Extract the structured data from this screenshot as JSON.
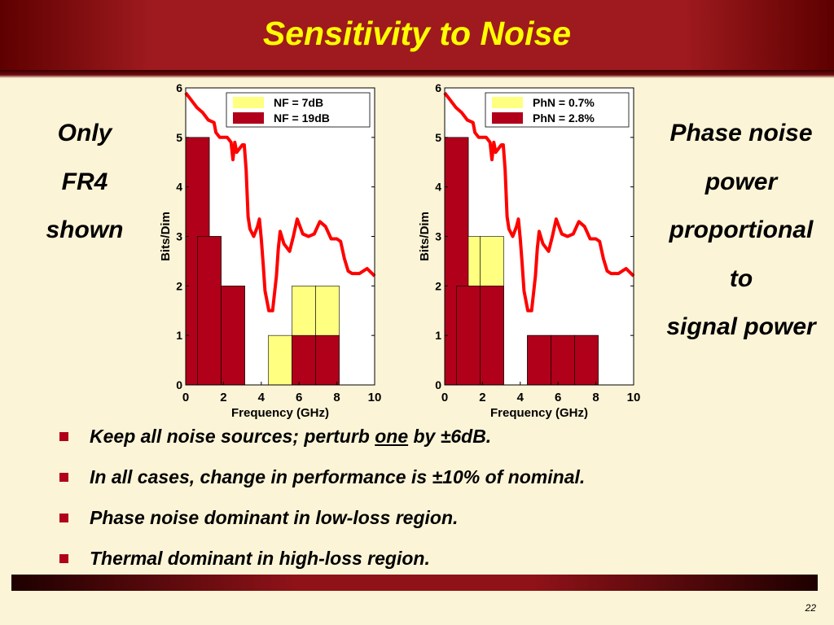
{
  "slide": {
    "title": "Sensitivity to Noise",
    "page_number": "22",
    "colors": {
      "title_bar": "#9e1a1e",
      "title_text": "#ffff00",
      "background": "#fcf4d6",
      "bullet": "#b0001a",
      "bar_primary": "#b0001a",
      "bar_secondary": "#ffff80",
      "curve": "#ff0000"
    }
  },
  "left_note": {
    "lines": [
      "Only",
      "FR4",
      "shown"
    ]
  },
  "right_note": {
    "lines": [
      "Phase noise",
      "power",
      "proportional",
      "to",
      "signal power"
    ]
  },
  "bullets": [
    {
      "before": "Keep all noise sources; perturb ",
      "underlined": "one",
      "after": " by ±6dB."
    },
    {
      "before": "In all cases, change in performance is ±10% of nominal.",
      "underlined": "",
      "after": ""
    },
    {
      "before": "Phase noise dominant in low-loss region.",
      "underlined": "",
      "after": ""
    },
    {
      "before": "Thermal dominant in high-loss region.",
      "underlined": "",
      "after": ""
    }
  ],
  "chart_data": [
    {
      "type": "bar",
      "xlabel": "Frequency (GHz)",
      "ylabel": "Bits/Dim",
      "xlim": [
        0,
        10
      ],
      "ylim": [
        0,
        6
      ],
      "xticks": [
        0,
        2,
        4,
        6,
        8,
        10
      ],
      "yticks": [
        0,
        1,
        2,
        3,
        4,
        5,
        6
      ],
      "bin_width_ghz": 1.25,
      "bin_starts_ghz": [
        0,
        0.625,
        1.875,
        3.125,
        4.375,
        5.625,
        6.875
      ],
      "legend_position": "top-right",
      "series": [
        {
          "name": "NF = 7dB",
          "color": "#ffff80",
          "values": [
            5,
            3,
            2,
            0,
            1,
            2,
            2
          ]
        },
        {
          "name": "NF = 19dB",
          "color": "#b0001a",
          "values": [
            5,
            3,
            2,
            0,
            0,
            1,
            1
          ]
        }
      ],
      "curve": {
        "color": "#ff0000",
        "x": [
          0,
          0.3,
          0.6,
          0.9,
          1.2,
          1.5,
          1.6,
          1.8,
          2.0,
          2.2,
          2.4,
          2.5,
          2.6,
          2.7,
          2.8,
          3.0,
          3.1,
          3.2,
          3.3,
          3.4,
          3.6,
          3.8,
          3.9,
          4.0,
          4.1,
          4.2,
          4.4,
          4.6,
          4.8,
          4.9,
          5.0,
          5.2,
          5.5,
          5.7,
          5.9,
          6.2,
          6.5,
          6.8,
          7.1,
          7.4,
          7.7,
          8.0,
          8.2,
          8.4,
          8.6,
          8.8,
          9.2,
          9.6,
          10
        ],
        "y": [
          5.9,
          5.75,
          5.6,
          5.5,
          5.35,
          5.3,
          5.1,
          5.0,
          5.0,
          5.0,
          4.9,
          4.55,
          4.9,
          4.7,
          4.75,
          4.85,
          4.85,
          4.35,
          3.4,
          3.15,
          3.0,
          3.2,
          3.35,
          2.95,
          2.45,
          1.9,
          1.5,
          1.5,
          2.2,
          2.75,
          3.1,
          2.85,
          2.7,
          3.0,
          3.35,
          3.05,
          3.0,
          3.05,
          3.3,
          3.2,
          2.95,
          2.95,
          2.9,
          2.55,
          2.3,
          2.25,
          2.25,
          2.35,
          2.2
        ]
      }
    },
    {
      "type": "bar",
      "xlabel": "Frequency (GHz)",
      "ylabel": "Bits/Dim",
      "xlim": [
        0,
        10
      ],
      "ylim": [
        0,
        6
      ],
      "xticks": [
        0,
        2,
        4,
        6,
        8,
        10
      ],
      "yticks": [
        0,
        1,
        2,
        3,
        4,
        5,
        6
      ],
      "bin_width_ghz": 1.25,
      "bin_starts_ghz": [
        0,
        0.625,
        1.875,
        3.125,
        4.375,
        5.625,
        6.875
      ],
      "legend_position": "top-right",
      "series": [
        {
          "name": "PhN = 0.7%",
          "color": "#ffff80",
          "values": [
            5,
            3,
            3,
            0,
            1,
            1,
            1
          ]
        },
        {
          "name": "PhN = 2.8%",
          "color": "#b0001a",
          "values": [
            5,
            2,
            2,
            0,
            1,
            1,
            1
          ]
        }
      ],
      "curve": {
        "color": "#ff0000",
        "x": [
          0,
          0.3,
          0.6,
          0.9,
          1.2,
          1.5,
          1.6,
          1.8,
          2.0,
          2.2,
          2.4,
          2.5,
          2.6,
          2.7,
          2.8,
          3.0,
          3.1,
          3.2,
          3.3,
          3.4,
          3.6,
          3.8,
          3.9,
          4.0,
          4.1,
          4.2,
          4.4,
          4.6,
          4.8,
          4.9,
          5.0,
          5.2,
          5.5,
          5.7,
          5.9,
          6.2,
          6.5,
          6.8,
          7.1,
          7.4,
          7.7,
          8.0,
          8.2,
          8.4,
          8.6,
          8.8,
          9.2,
          9.6,
          10
        ],
        "y": [
          5.9,
          5.75,
          5.6,
          5.5,
          5.35,
          5.3,
          5.1,
          5.0,
          5.0,
          5.0,
          4.9,
          4.55,
          4.9,
          4.7,
          4.75,
          4.85,
          4.85,
          4.35,
          3.4,
          3.15,
          3.0,
          3.2,
          3.35,
          2.95,
          2.45,
          1.9,
          1.5,
          1.5,
          2.2,
          2.75,
          3.1,
          2.85,
          2.7,
          3.0,
          3.35,
          3.05,
          3.0,
          3.05,
          3.3,
          3.2,
          2.95,
          2.95,
          2.9,
          2.55,
          2.3,
          2.25,
          2.25,
          2.35,
          2.2
        ]
      }
    }
  ]
}
